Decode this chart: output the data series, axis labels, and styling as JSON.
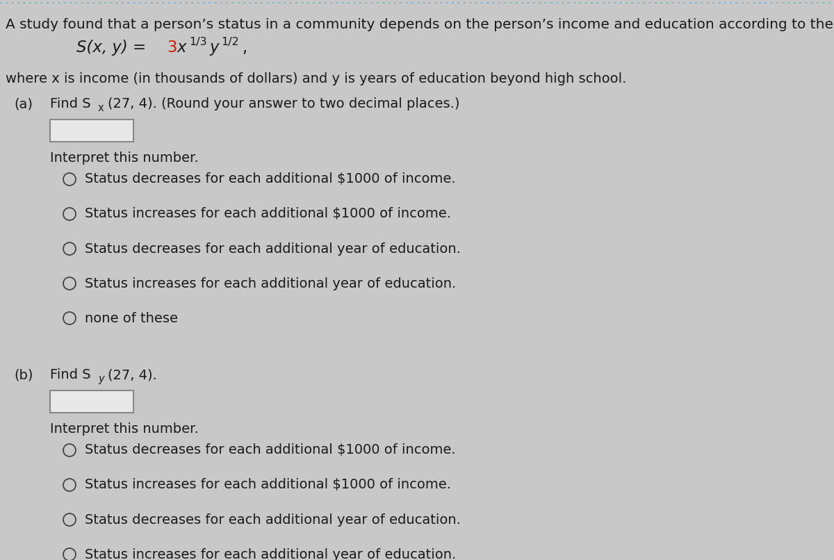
{
  "background_color": "#c8c8c8",
  "top_dotted_color": "#7ab0d0",
  "title_line": "A study found that a person’s status in a community depends on the person’s income and education according to the function",
  "formula_S": "S(x, y) = ",
  "formula_3_color": "#cc2200",
  "formula_3": "3",
  "formula_x": "x",
  "formula_exp1": "1/3",
  "formula_y": "y",
  "formula_exp2": "1/2",
  "formula_comma": ",",
  "where_line": "where x is income (in thousands of dollars) and y is years of education beyond high school.",
  "part_a_label": "(a)",
  "part_a_text1": "Find S",
  "part_a_sub": "x",
  "part_a_text2": "(27, 4). (Round your answer to two decimal places.)",
  "part_b_label": "(b)",
  "part_b_text1": "Find S",
  "part_b_sub": "y",
  "part_b_text2": "(27, 4).",
  "interpret_label": "Interpret this number.",
  "radio_options": [
    "Status decreases for each additional $1000 of income.",
    "Status increases for each additional $1000 of income.",
    "Status decreases for each additional year of education.",
    "Status increases for each additional year of education.",
    "none of these"
  ],
  "font_size_title": 14.5,
  "font_size_body": 14.0,
  "font_size_formula": 16.5,
  "font_size_sup": 11.5,
  "font_size_sub": 10.5,
  "text_color": "#1a1a1a",
  "box_edge_color": "#888888",
  "box_face_color": "#e8e8e8",
  "radio_color": "#444444"
}
